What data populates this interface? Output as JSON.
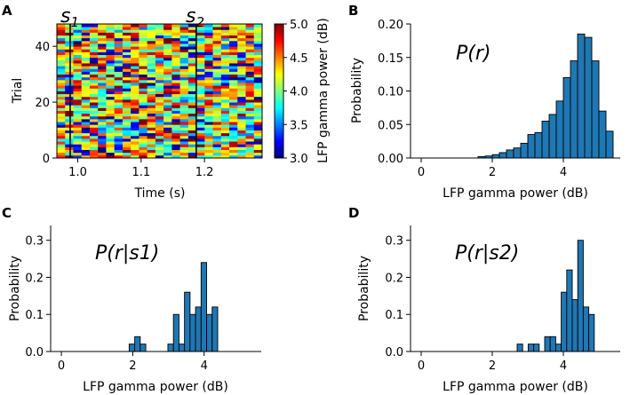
{
  "panel_labels": {
    "A": "A",
    "B": "B",
    "C": "C",
    "D": "D"
  },
  "chart_data": [
    {
      "panel": "A",
      "type": "heatmap",
      "xlabel": "Time (s)",
      "ylabel": "Trial",
      "xlim": [
        0.967,
        1.291
      ],
      "ylim": [
        0,
        48
      ],
      "xticks": [
        1.0,
        1.1,
        1.2
      ],
      "xtick_labels": [
        "1.0",
        "1.1",
        "1.2"
      ],
      "yticks": [
        0,
        20,
        40
      ],
      "ytick_labels": [
        "0",
        "20",
        "40"
      ],
      "n_time_bins": 25,
      "n_trials": 48,
      "colormap": "jet",
      "annotations": [
        {
          "text": "s",
          "sub": "1",
          "x": 0.988
        },
        {
          "text": "s",
          "sub": "2",
          "x": 1.187
        }
      ],
      "colorbar": {
        "label": "LFP gamma power (dB)",
        "range": [
          3.0,
          5.0
        ],
        "ticks": [
          3.0,
          3.5,
          4.0,
          4.5,
          5.0
        ],
        "tick_labels": [
          "3.0",
          "3.5",
          "4.0",
          "4.5",
          "5.0"
        ]
      }
    },
    {
      "panel": "B",
      "type": "bar",
      "title_annotation": "P(r)",
      "xlabel": "LFP gamma power (dB)",
      "ylabel": "Probability",
      "xlim": [
        -0.3,
        5.6
      ],
      "ylim": [
        0,
        0.2
      ],
      "xticks": [
        0,
        2,
        4
      ],
      "xtick_labels": [
        "0",
        "2",
        "4"
      ],
      "yticks": [
        0.0,
        0.05,
        0.1,
        0.15,
        0.2
      ],
      "ytick_labels": [
        "0.00",
        "0.05",
        "0.10",
        "0.15",
        "0.20"
      ],
      "bin_start": 1.6,
      "bin_width": 0.2,
      "values": [
        0.002,
        0.003,
        0.005,
        0.008,
        0.012,
        0.015,
        0.022,
        0.035,
        0.038,
        0.055,
        0.065,
        0.085,
        0.12,
        0.145,
        0.185,
        0.18,
        0.145,
        0.07,
        0.04
      ]
    },
    {
      "panel": "C",
      "type": "bar",
      "title_annotation": "P(r|s1)",
      "xlabel": "LFP gamma power (dB)",
      "ylabel": "Probability",
      "xlim": [
        -0.3,
        5.6
      ],
      "ylim": [
        0,
        0.34
      ],
      "xticks": [
        0,
        2,
        4
      ],
      "xtick_labels": [
        "0",
        "2",
        "4"
      ],
      "yticks": [
        0.0,
        0.1,
        0.2,
        0.3
      ],
      "ytick_labels": [
        "0.0",
        "0.1",
        "0.2",
        "0.3"
      ],
      "bin_start": 1.9,
      "bin_width": 0.155,
      "values": [
        0.02,
        0.04,
        0.02,
        0,
        0,
        0,
        0,
        0.02,
        0.1,
        0.02,
        0.16,
        0.1,
        0.12,
        0.24,
        0.1,
        0.12
      ]
    },
    {
      "panel": "D",
      "type": "bar",
      "title_annotation": "P(r|s2)",
      "xlabel": "LFP gamma power (dB)",
      "ylabel": "Probability",
      "xlim": [
        -0.3,
        5.6
      ],
      "ylim": [
        0,
        0.34
      ],
      "xticks": [
        0,
        2,
        4
      ],
      "xtick_labels": [
        "0",
        "2",
        "4"
      ],
      "yticks": [
        0.0,
        0.1,
        0.2,
        0.3
      ],
      "ytick_labels": [
        "0.0",
        "0.1",
        "0.2",
        "0.3"
      ],
      "bin_start": 2.7,
      "bin_width": 0.155,
      "values": [
        0.02,
        0,
        0.02,
        0.02,
        0,
        0.04,
        0.04,
        0.02,
        0.16,
        0.22,
        0.14,
        0.3,
        0.12,
        0.1
      ]
    }
  ]
}
